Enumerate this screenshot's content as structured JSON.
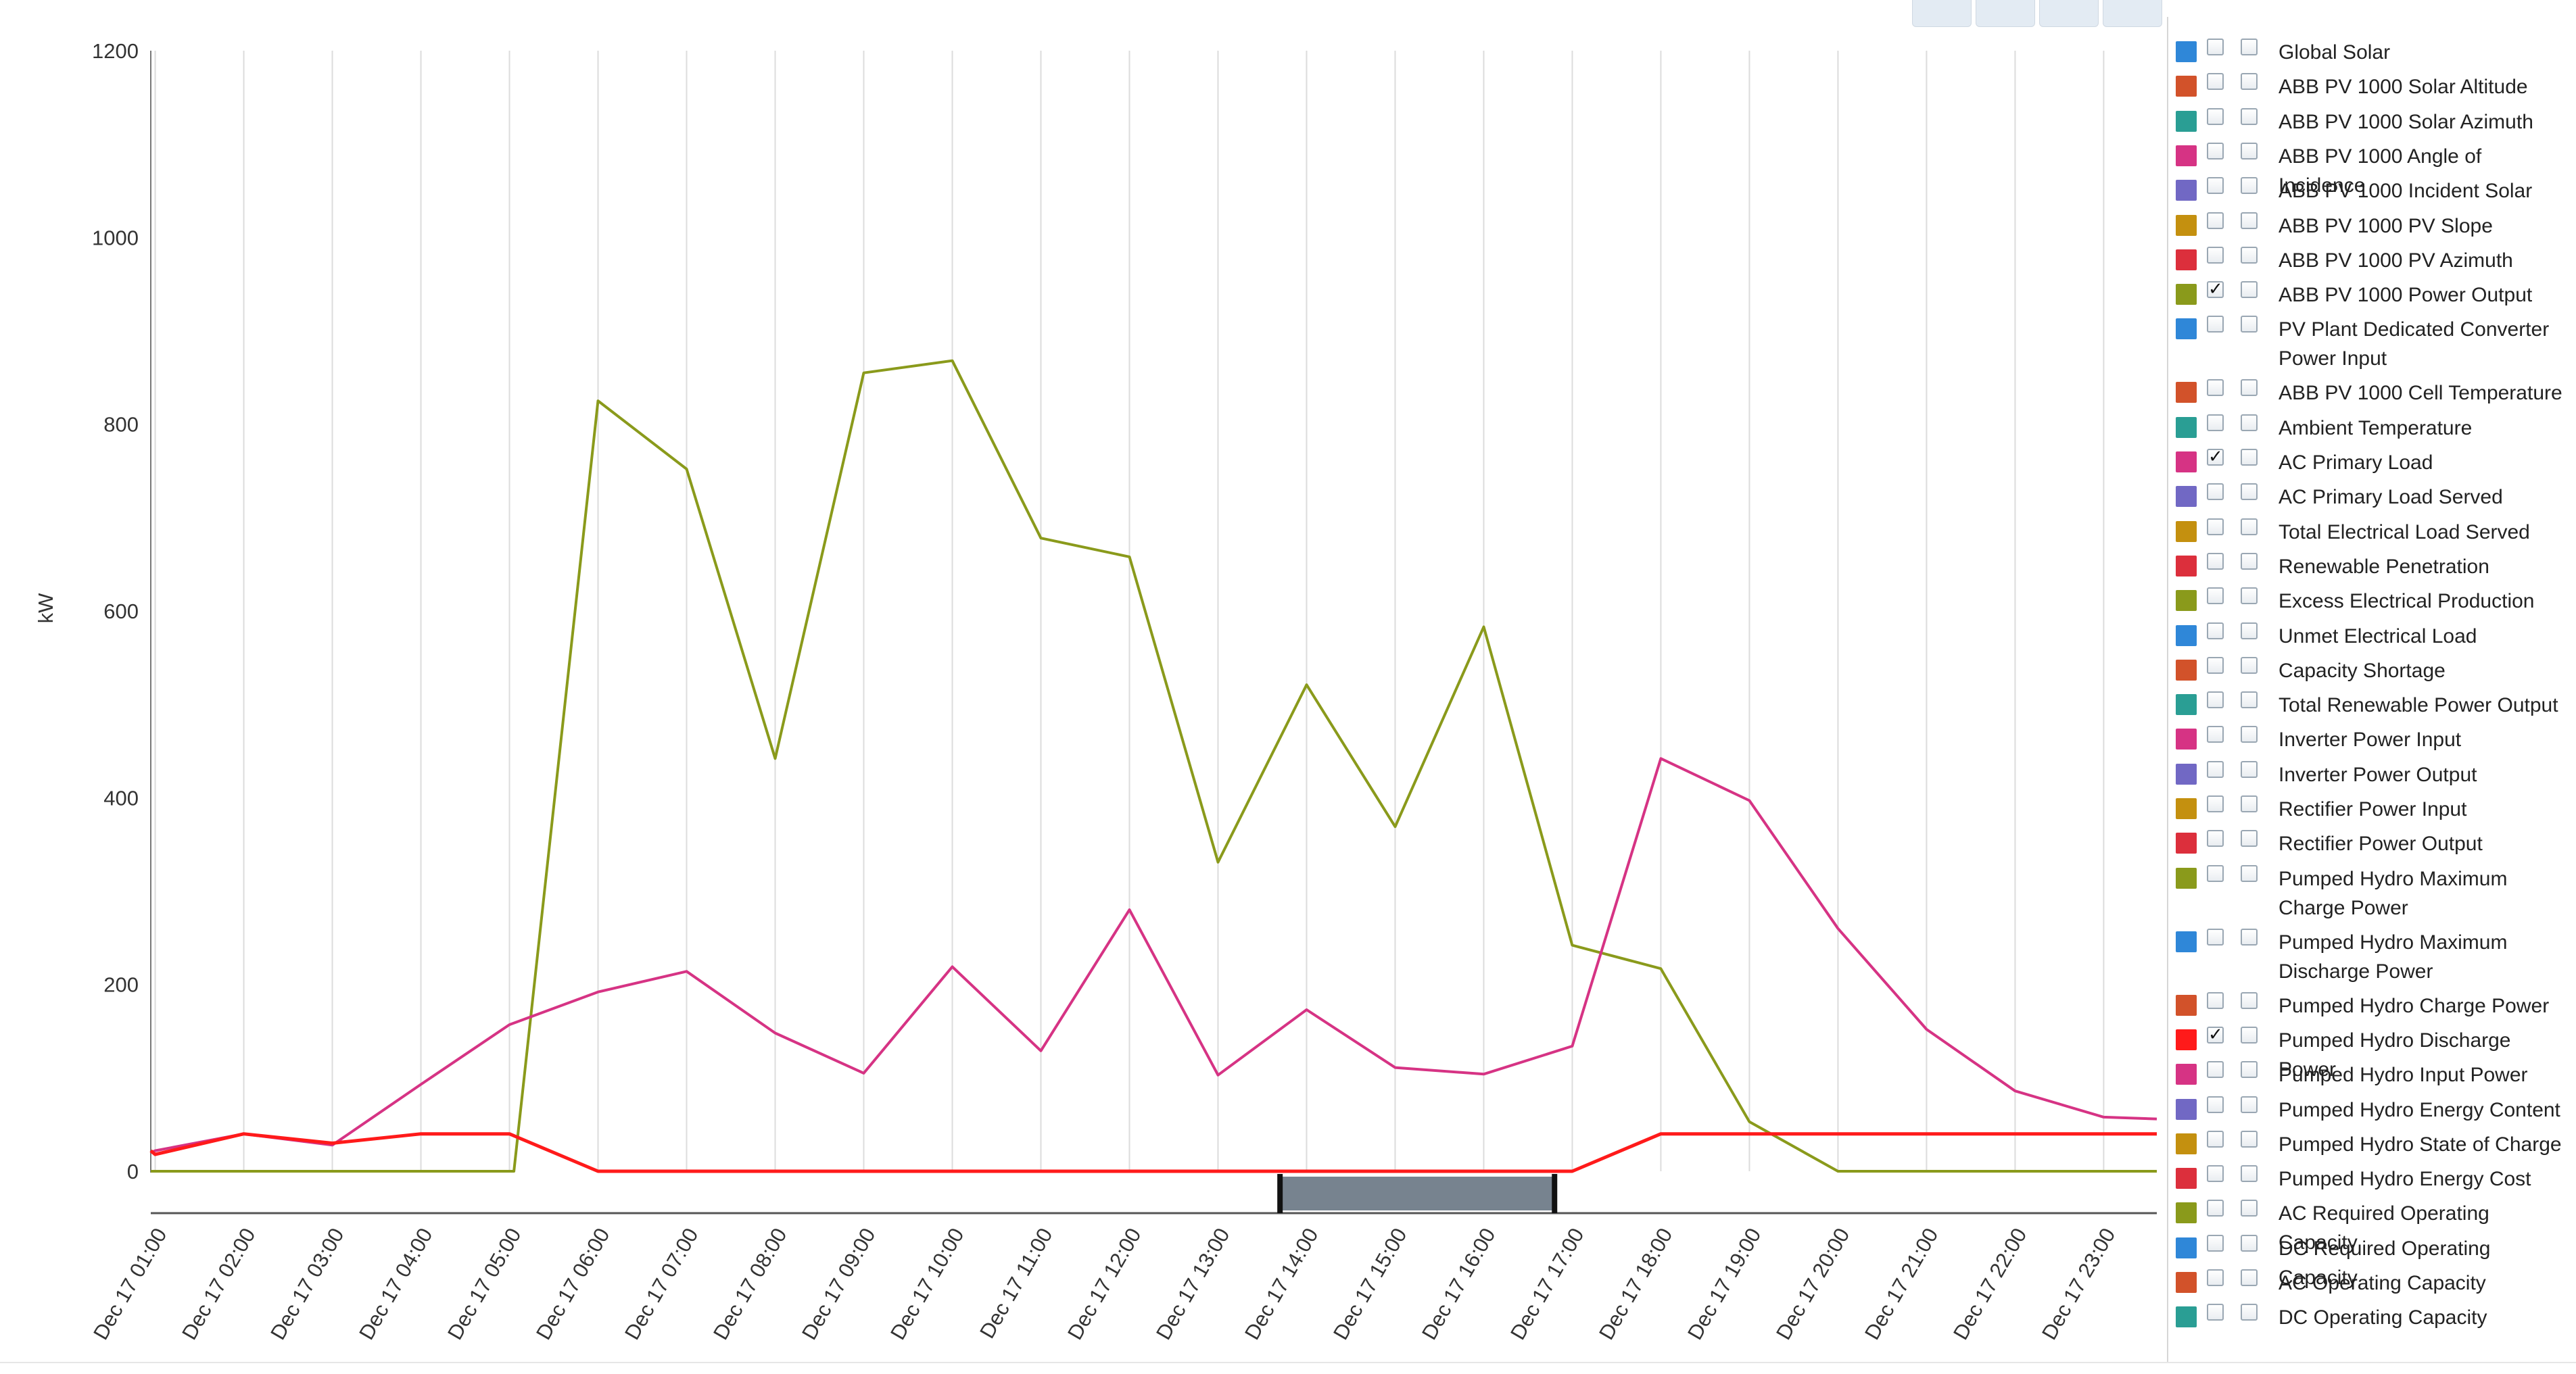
{
  "chart_data": {
    "type": "line",
    "ylabel": "kW",
    "xlabel": "",
    "ylim": [
      0,
      1200
    ],
    "yticks": [
      0,
      200,
      400,
      600,
      800,
      1000,
      1200
    ],
    "grid": "vertical",
    "categories": [
      "Dec 17 01:00",
      "Dec 17 02:00",
      "Dec 17 03:00",
      "Dec 17 04:00",
      "Dec 17 05:00",
      "Dec 17 06:00",
      "Dec 17 07:00",
      "Dec 17 08:00",
      "Dec 17 09:00",
      "Dec 17 10:00",
      "Dec 17 11:00",
      "Dec 17 12:00",
      "Dec 17 13:00",
      "Dec 17 14:00",
      "Dec 17 15:00",
      "Dec 17 16:00",
      "Dec 17 17:00",
      "Dec 17 18:00",
      "Dec 17 19:00",
      "Dec 17 20:00",
      "Dec 17 21:00",
      "Dec 17 22:00",
      "Dec 17 23:00"
    ],
    "x_start_hour": 0.95,
    "x_end_hour": 23.6,
    "series": [
      {
        "name": "ABB PV 1000 Power Output",
        "color": "#8a9a1b",
        "x": [
          0.95,
          5.05,
          6.0,
          7.0,
          8.0,
          9.0,
          10.0,
          11.0,
          12.0,
          13.0,
          14.0,
          15.0,
          16.0,
          17.0,
          18.0,
          19.0,
          20.0,
          21.0,
          22.0,
          23.0,
          23.6
        ],
        "y": [
          0,
          0,
          825,
          752,
          442,
          855,
          868,
          678,
          658,
          331,
          521,
          369,
          583,
          242,
          217,
          53,
          0,
          0,
          0,
          0,
          0
        ]
      },
      {
        "name": "AC Primary Load",
        "color": "#d63384",
        "x": [
          0.95,
          1.0,
          2.0,
          3.0,
          4.0,
          5.0,
          6.0,
          7.0,
          8.0,
          9.0,
          10.0,
          11.0,
          12.0,
          13.0,
          14.0,
          15.0,
          16.0,
          17.0,
          18.0,
          19.0,
          20.0,
          21.0,
          22.0,
          23.0,
          23.6
        ],
        "y": [
          20,
          22,
          40,
          28,
          93,
          157,
          192,
          214,
          148,
          105,
          219,
          129,
          280,
          103,
          173,
          111,
          104,
          134,
          442,
          397,
          260,
          152,
          86,
          58,
          56
        ]
      },
      {
        "name": "Pumped Hydro Discharge Power",
        "color": "#ff1a1a",
        "x": [
          0.95,
          1.0,
          2.0,
          3.0,
          4.0,
          5.0,
          6.0,
          7.0,
          8.0,
          9.0,
          10.0,
          11.0,
          12.0,
          13.0,
          14.0,
          15.0,
          16.0,
          17.0,
          18.0,
          19.0,
          20.0,
          21.0,
          22.0,
          23.0,
          23.6
        ],
        "y": [
          22,
          18,
          40,
          30,
          40,
          40,
          0,
          0,
          0,
          0,
          0,
          0,
          0,
          0,
          0,
          0,
          0,
          0,
          40,
          40,
          40,
          40,
          40,
          40,
          40
        ]
      }
    ],
    "range_selector": {
      "from_hour": 13.7,
      "to_hour": 16.8
    }
  },
  "legend": {
    "items": [
      {
        "label": "Global Solar",
        "color": "#2f87d8",
        "checked": false
      },
      {
        "label": "ABB PV 1000 Solar Altitude",
        "color": "#d2522a",
        "checked": false
      },
      {
        "label": "ABB PV 1000 Solar Azimuth",
        "color": "#2a9e94",
        "checked": false
      },
      {
        "label": "ABB PV 1000 Angle of Incidence",
        "color": "#d63384",
        "checked": false
      },
      {
        "label": "ABB PV 1000 Incident Solar",
        "color": "#7168c4",
        "checked": false
      },
      {
        "label": "ABB PV 1000 PV Slope",
        "color": "#c4900f",
        "checked": false
      },
      {
        "label": "ABB PV 1000 PV Azimuth",
        "color": "#dc2f3c",
        "checked": false
      },
      {
        "label": "ABB PV 1000 Power Output",
        "color": "#8a9a1b",
        "checked": true
      },
      {
        "label": "PV Plant Dedicated Converter Power Input",
        "color": "#2f87d8",
        "checked": false
      },
      {
        "label": "ABB PV 1000 Cell Temperature",
        "color": "#d2522a",
        "checked": false
      },
      {
        "label": "Ambient Temperature",
        "color": "#2a9e94",
        "checked": false
      },
      {
        "label": "AC Primary Load",
        "color": "#d63384",
        "checked": true
      },
      {
        "label": "AC Primary Load Served",
        "color": "#7168c4",
        "checked": false
      },
      {
        "label": "Total Electrical Load Served",
        "color": "#c4900f",
        "checked": false
      },
      {
        "label": "Renewable Penetration",
        "color": "#dc2f3c",
        "checked": false
      },
      {
        "label": "Excess Electrical Production",
        "color": "#8a9a1b",
        "checked": false
      },
      {
        "label": "Unmet Electrical Load",
        "color": "#2f87d8",
        "checked": false
      },
      {
        "label": "Capacity Shortage",
        "color": "#d2522a",
        "checked": false
      },
      {
        "label": "Total Renewable Power Output",
        "color": "#2a9e94",
        "checked": false
      },
      {
        "label": "Inverter Power Input",
        "color": "#d63384",
        "checked": false
      },
      {
        "label": "Inverter Power Output",
        "color": "#7168c4",
        "checked": false
      },
      {
        "label": "Rectifier Power Input",
        "color": "#c4900f",
        "checked": false
      },
      {
        "label": "Rectifier Power Output",
        "color": "#dc2f3c",
        "checked": false
      },
      {
        "label": "Pumped Hydro Maximum Charge Power",
        "color": "#8a9a1b",
        "checked": false
      },
      {
        "label": "Pumped Hydro Maximum Discharge Power",
        "color": "#2f87d8",
        "checked": false
      },
      {
        "label": "Pumped Hydro Charge Power",
        "color": "#d2522a",
        "checked": false
      },
      {
        "label": "Pumped Hydro Discharge Power",
        "color": "#ff1a1a",
        "checked": true
      },
      {
        "label": "Pumped Hydro Input Power",
        "color": "#d63384",
        "checked": false
      },
      {
        "label": "Pumped Hydro Energy Content",
        "color": "#7168c4",
        "checked": false
      },
      {
        "label": "Pumped Hydro State of Charge",
        "color": "#c4900f",
        "checked": false
      },
      {
        "label": "Pumped Hydro Energy Cost",
        "color": "#dc2f3c",
        "checked": false
      },
      {
        "label": "AC Required Operating Capacity",
        "color": "#8a9a1b",
        "checked": false
      },
      {
        "label": "DC Required Operating Capacity",
        "color": "#2f87d8",
        "checked": false
      },
      {
        "label": "AC Operating Capacity",
        "color": "#d2522a",
        "checked": false
      },
      {
        "label": "DC Operating Capacity",
        "color": "#2a9e94",
        "checked": false
      }
    ]
  }
}
